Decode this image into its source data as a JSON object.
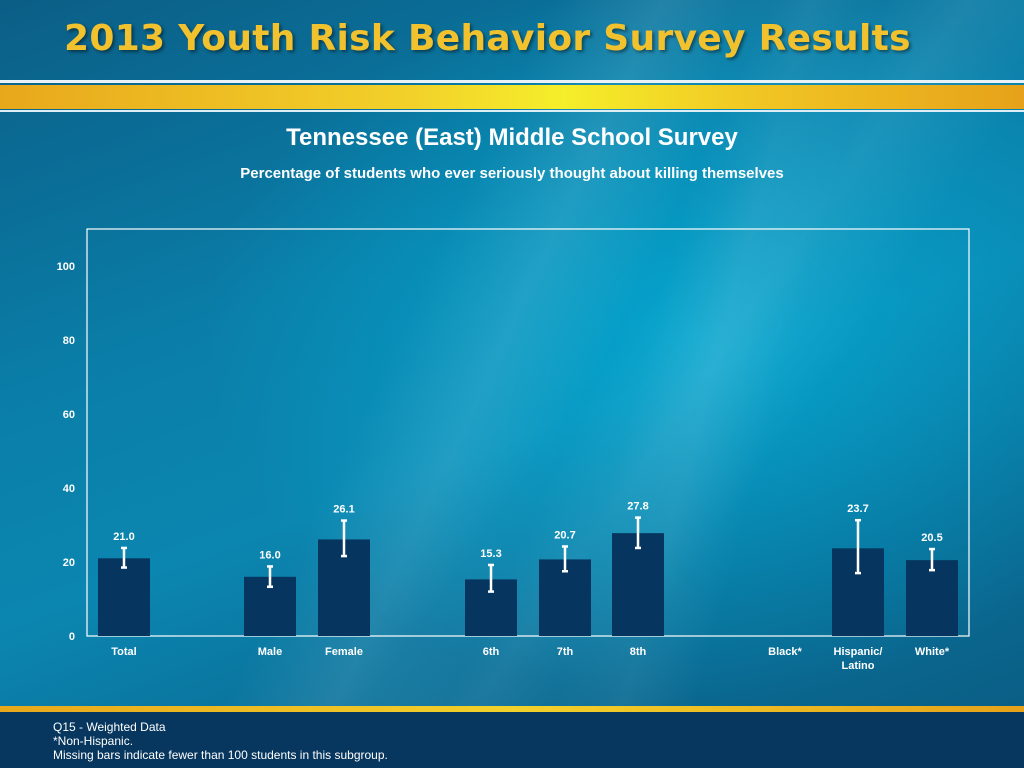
{
  "header": {
    "title": "2013 Youth Risk Behavior Survey Results"
  },
  "chart_title": "Tennessee (East) Middle School Survey",
  "chart_subtitle": "Percentage of students who ever seriously thought about killing themselves",
  "colors": {
    "bar": "#06365f",
    "axis_text": "#ffffff",
    "header_text": "#f2c12e"
  },
  "chart_data": {
    "type": "bar",
    "categories": [
      "Total",
      "Male",
      "Female",
      "6th",
      "7th",
      "8th",
      "Black*",
      "Hispanic/\nLatino",
      "White*"
    ],
    "values": [
      21.0,
      16.0,
      26.1,
      15.3,
      20.7,
      27.8,
      null,
      23.7,
      20.5
    ],
    "error_bars": [
      [
        18.5,
        23.8
      ],
      [
        13.3,
        18.8
      ],
      [
        21.6,
        31.2
      ],
      [
        12.0,
        19.2
      ],
      [
        17.5,
        24.2
      ],
      [
        23.8,
        32.0
      ],
      null,
      [
        17.0,
        31.3
      ],
      [
        17.8,
        23.5
      ]
    ],
    "data_labels": [
      "21.0",
      "16.0",
      "26.1",
      "15.3",
      "20.7",
      "27.8",
      "",
      "23.7",
      "20.5"
    ],
    "ylim": [
      0,
      110
    ],
    "yticks": [
      0,
      20,
      40,
      60,
      80,
      100
    ],
    "xlabel": "",
    "ylabel": "",
    "grid": false,
    "legend": "none"
  },
  "footer": {
    "q": "Q15 - Weighted Data",
    "note1": "*Non-Hispanic.",
    "note2": "Missing bars indicate fewer than 100 students in this subgroup."
  }
}
